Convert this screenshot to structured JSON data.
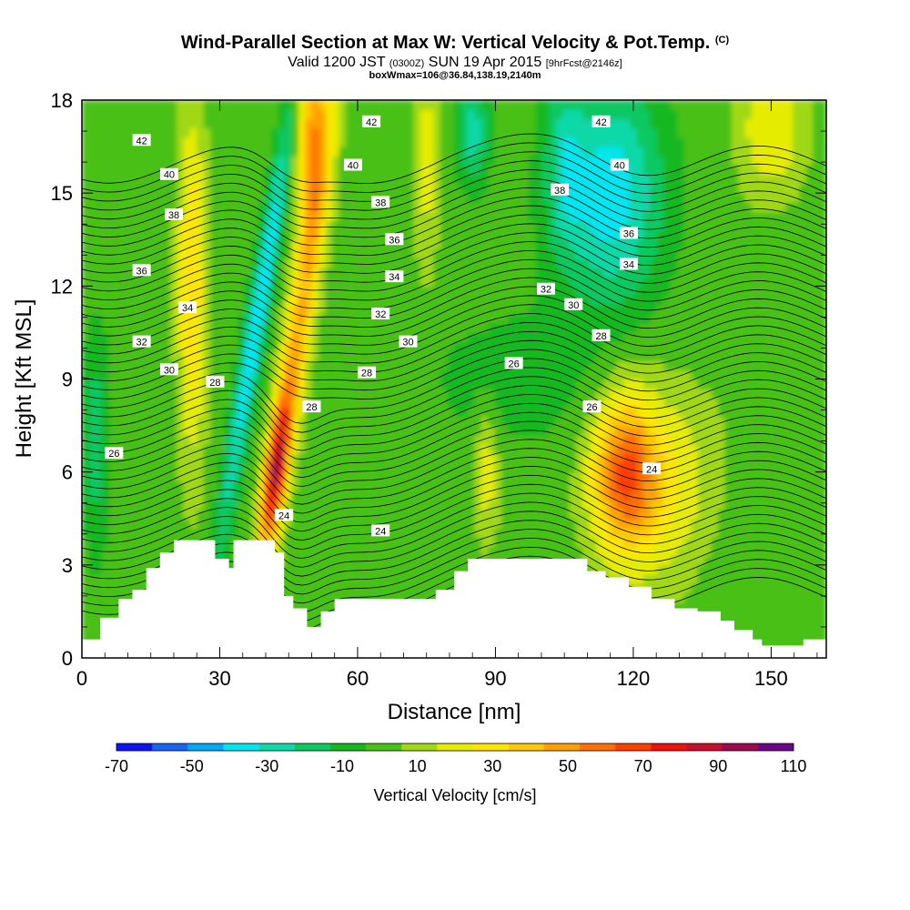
{
  "header": {
    "title": "Wind-Parallel Section at Max W: Vertical Velocity & Pot.Temp.",
    "title_mark": "(C)",
    "valid_prefix": "Valid 1200 JST",
    "valid_utc": "(0300Z)",
    "valid_date": "SUN 19 Apr 2015",
    "forecast": "[9hrFcst@2146z]",
    "boxline": "boxWmax=106@36.84,138.19,2140m"
  },
  "chart_data": {
    "type": "heatmap",
    "xlabel": "Distance [nm]",
    "ylabel": "Height [Kft MSL]",
    "xlim": [
      0,
      162
    ],
    "ylim": [
      0,
      18
    ],
    "x_ticks": [
      0,
      30,
      60,
      90,
      120,
      150
    ],
    "y_ticks": [
      0,
      3,
      6,
      9,
      12,
      15,
      18
    ],
    "colorbar": {
      "title": "Vertical Velocity [cm/s]",
      "labels": [
        "-70",
        "-50",
        "-30",
        "-10",
        "10",
        "30",
        "50",
        "70",
        "90",
        "110"
      ],
      "levels": [
        -70,
        -60,
        -50,
        -40,
        -30,
        -20,
        -10,
        0,
        10,
        20,
        30,
        40,
        50,
        60,
        70,
        80,
        90,
        100,
        110
      ],
      "colors": [
        "#0a14f5",
        "#1a64f0",
        "#00a8f8",
        "#00e6f0",
        "#10d8a8",
        "#10c860",
        "#16b820",
        "#48c018",
        "#a0d812",
        "#e6ec00",
        "#ffe600",
        "#ffc800",
        "#ffa000",
        "#ff7000",
        "#ff4000",
        "#f01010",
        "#c8102c",
        "#9c0a50",
        "#6a0888"
      ]
    },
    "terrain": [
      [
        0,
        0.6
      ],
      [
        2,
        0.6
      ],
      [
        4,
        1.3
      ],
      [
        8,
        1.9
      ],
      [
        11,
        2.2
      ],
      [
        14,
        2.9
      ],
      [
        17,
        3.4
      ],
      [
        20,
        3.8
      ],
      [
        26,
        3.8
      ],
      [
        29,
        3.2
      ],
      [
        32,
        2.9
      ],
      [
        33,
        3.8
      ],
      [
        39,
        3.8
      ],
      [
        42,
        3.4
      ],
      [
        44,
        2.0
      ],
      [
        46,
        1.6
      ],
      [
        49,
        1.0
      ],
      [
        52,
        1.5
      ],
      [
        55,
        1.9
      ],
      [
        70,
        1.9
      ],
      [
        77,
        2.2
      ],
      [
        81,
        2.8
      ],
      [
        84,
        3.2
      ],
      [
        106,
        3.2
      ],
      [
        110,
        2.8
      ],
      [
        114,
        2.6
      ],
      [
        119,
        2.3
      ],
      [
        124,
        1.9
      ],
      [
        129,
        1.6
      ],
      [
        134,
        1.5
      ],
      [
        139,
        1.2
      ],
      [
        142,
        0.9
      ],
      [
        146,
        0.6
      ],
      [
        148,
        0.4
      ],
      [
        155,
        0.4
      ],
      [
        157,
        0.6
      ],
      [
        162,
        0.6
      ]
    ],
    "theta_label_values": [
      "24",
      "26",
      "28",
      "30",
      "32",
      "34",
      "36",
      "38",
      "40",
      "42"
    ],
    "theta_labels": [
      {
        "text": "42",
        "x": 13,
        "y": 16.7
      },
      {
        "text": "40",
        "x": 19,
        "y": 15.6
      },
      {
        "text": "38",
        "x": 20,
        "y": 14.3
      },
      {
        "text": "36",
        "x": 13,
        "y": 12.5
      },
      {
        "text": "34",
        "x": 23,
        "y": 11.3
      },
      {
        "text": "32",
        "x": 13,
        "y": 10.2
      },
      {
        "text": "30",
        "x": 19,
        "y": 9.3
      },
      {
        "text": "28",
        "x": 29,
        "y": 8.9
      },
      {
        "text": "26",
        "x": 7,
        "y": 6.6
      },
      {
        "text": "42",
        "x": 63,
        "y": 17.3
      },
      {
        "text": "40",
        "x": 59,
        "y": 15.9
      },
      {
        "text": "38",
        "x": 65,
        "y": 14.7
      },
      {
        "text": "36",
        "x": 68,
        "y": 13.5
      },
      {
        "text": "34",
        "x": 68,
        "y": 12.3
      },
      {
        "text": "32",
        "x": 65,
        "y": 11.1
      },
      {
        "text": "30",
        "x": 71,
        "y": 10.2
      },
      {
        "text": "28",
        "x": 62,
        "y": 9.2
      },
      {
        "text": "28",
        "x": 50,
        "y": 8.1
      },
      {
        "text": "24",
        "x": 44,
        "y": 4.6
      },
      {
        "text": "24",
        "x": 65,
        "y": 4.1
      },
      {
        "text": "26",
        "x": 94,
        "y": 9.5
      },
      {
        "text": "28",
        "x": 113,
        "y": 10.4
      },
      {
        "text": "30",
        "x": 107,
        "y": 11.4
      },
      {
        "text": "32",
        "x": 101,
        "y": 11.9
      },
      {
        "text": "34",
        "x": 119,
        "y": 12.7
      },
      {
        "text": "36",
        "x": 119,
        "y": 13.7
      },
      {
        "text": "38",
        "x": 104,
        "y": 15.1
      },
      {
        "text": "40",
        "x": 117,
        "y": 15.9
      },
      {
        "text": "42",
        "x": 113,
        "y": 17.3
      },
      {
        "text": "26",
        "x": 111,
        "y": 8.1
      },
      {
        "text": "24",
        "x": 124,
        "y": 6.1
      }
    ]
  }
}
